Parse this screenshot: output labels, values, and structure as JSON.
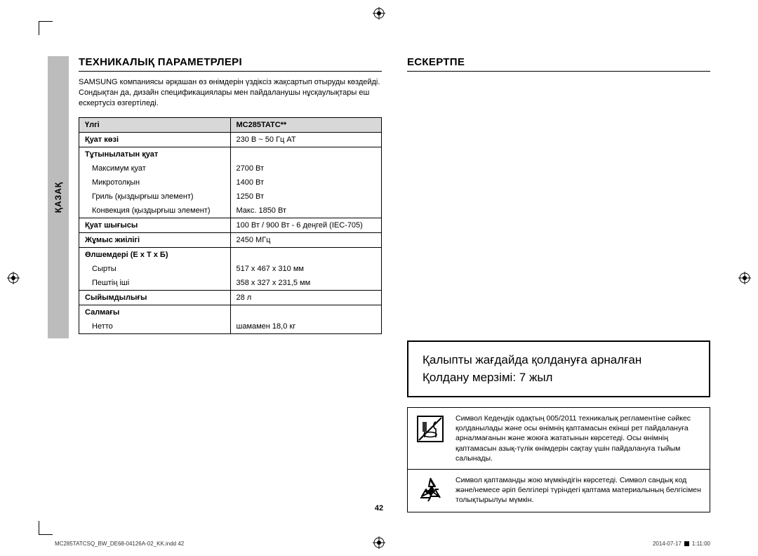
{
  "sidebar_label": "ҚАЗАҚ",
  "left": {
    "heading": "ТЕХНИКАЛЫҚ ПАРАМЕТРЛЕРІ",
    "intro": "SAMSUNG компаниясы әрқашан өз өнімдерін үздіксіз жақсартып отыруды көздейді. Сондықтан да, дизайн спецификациялары мен пайдаланушы нұсқаулықтары еш ескертусіз өзгертіледі.",
    "header_label": "Үлгі",
    "header_model": "MC285TATC**",
    "rows": [
      {
        "lbl": "Қуат көзі",
        "val": "230 В ~ 50 Гц АТ",
        "bold": true
      },
      {
        "lbl": "Тұтынылатын қуат",
        "val": "",
        "bold": true,
        "open": true
      },
      {
        "lbl": "Максимум қуат",
        "val": "2700 Вт",
        "sub": true,
        "mid": true
      },
      {
        "lbl": "Микротолқын",
        "val": "1400 Вт",
        "sub": true,
        "mid": true
      },
      {
        "lbl": "Гриль (қыздырғыш элемент)",
        "val": "1250 Вт",
        "sub": true,
        "mid": true
      },
      {
        "lbl": "Конвекция (қыздырғыш элемент)",
        "val": "Макс. 1850 Вт",
        "sub": true,
        "close": true
      },
      {
        "lbl": "Қуат шығысы",
        "val": "100 Вт / 900 Вт - 6 деңгей (IEC-705)",
        "bold": true
      },
      {
        "lbl": "Жұмыс жиілігі",
        "val": "2450 МГц",
        "bold": true
      },
      {
        "lbl": "Өлшемдері (Е x Т x Б)",
        "val": "",
        "bold": true,
        "open": true
      },
      {
        "lbl": "Сырты",
        "val": "517 x 467 x 310 мм",
        "sub": true,
        "mid": true
      },
      {
        "lbl": "Пештің іші",
        "val": "358 x 327 x 231,5 мм",
        "sub": true,
        "close": true
      },
      {
        "lbl": "Сыйымдылығы",
        "val": "28 л",
        "bold": true
      },
      {
        "lbl": "Салмағы",
        "val": "",
        "bold": true,
        "open": true
      },
      {
        "lbl": "Нетто",
        "val": "шамамен 18,0 кг",
        "sub": true,
        "close": true
      }
    ]
  },
  "right": {
    "heading": "ЕСКЕРТПЕ",
    "usage_line1": "Қалыпты жағдайда қолдануға арналған",
    "usage_line2": "Қолдану мерзімі: 7 жыл",
    "sym1": "Символ Кедендік одақтың 005/2011 техникалық регламентіне сәйкес қолданылады және осы өнімнің қаптамасын екінші рет пайдалануға арналмағанын және жоюға жататынын көрсетеді. Осы өнімнің қаптамасын азық-түлік өнімдерін сақтау үшін пайдалануға тыйым салынады.",
    "sym2": "Символ қаптаманды жою мүмкіндігін көрсетеді. Символ сандық код және/немесе әріп белгілері түріндегі қаптама материалының белгісімен толықтырылуы мүмкін."
  },
  "page_number": "42",
  "footer_left": "MC285TATCSQ_BW_DE68-04126A-02_KK.indd   42",
  "footer_date": "2014-07-17",
  "footer_time": "1:11:00"
}
